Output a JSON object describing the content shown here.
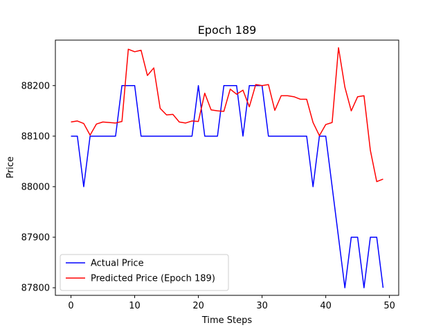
{
  "chart_data": {
    "type": "line",
    "title": "Epoch 189",
    "xlabel": "Time Steps",
    "ylabel": "Price",
    "xlim": [
      -2.45,
      51.45
    ],
    "ylim": [
      87785,
      88290
    ],
    "xticks": [
      0,
      10,
      20,
      30,
      40,
      50
    ],
    "yticks": [
      87800,
      87900,
      88000,
      88100,
      88200
    ],
    "grid": false,
    "legend_position": "lower-left",
    "x": [
      0,
      1,
      2,
      3,
      4,
      5,
      6,
      7,
      8,
      9,
      10,
      11,
      12,
      13,
      14,
      15,
      16,
      17,
      18,
      19,
      20,
      21,
      22,
      23,
      24,
      25,
      26,
      27,
      28,
      29,
      30,
      31,
      32,
      33,
      34,
      35,
      36,
      37,
      38,
      39,
      40,
      41,
      42,
      43,
      44,
      45,
      46,
      47,
      48,
      49
    ],
    "series": [
      {
        "name": "Actual Price",
        "color": "#0000ff",
        "values": [
          88100,
          88100,
          88000,
          88100,
          88100,
          88100,
          88100,
          88100,
          88200,
          88200,
          88200,
          88100,
          88100,
          88100,
          88100,
          88100,
          88100,
          88100,
          88100,
          88100,
          88200,
          88100,
          88100,
          88100,
          88200,
          88200,
          88200,
          88100,
          88200,
          88200,
          88200,
          88100,
          88100,
          88100,
          88100,
          88100,
          88100,
          88100,
          88000,
          88100,
          88100,
          88000,
          87900,
          87800,
          87900,
          87900,
          87800,
          87900,
          87900,
          87800
        ]
      },
      {
        "name": "Predicted Price (Epoch 189)",
        "color": "#ff0000",
        "values": [
          88128,
          88130,
          88125,
          88102,
          88124,
          88128,
          88127,
          88126,
          88129,
          88272,
          88267,
          88270,
          88220,
          88235,
          88155,
          88142,
          88143,
          88128,
          88126,
          88130,
          88129,
          88185,
          88152,
          88150,
          88149,
          88193,
          88183,
          88191,
          88158,
          88202,
          88200,
          88202,
          88151,
          88180,
          88180,
          88178,
          88173,
          88173,
          88127,
          88101,
          88123,
          88127,
          88275,
          88197,
          88150,
          88178,
          88180,
          88072,
          88010,
          88015
        ]
      }
    ]
  }
}
